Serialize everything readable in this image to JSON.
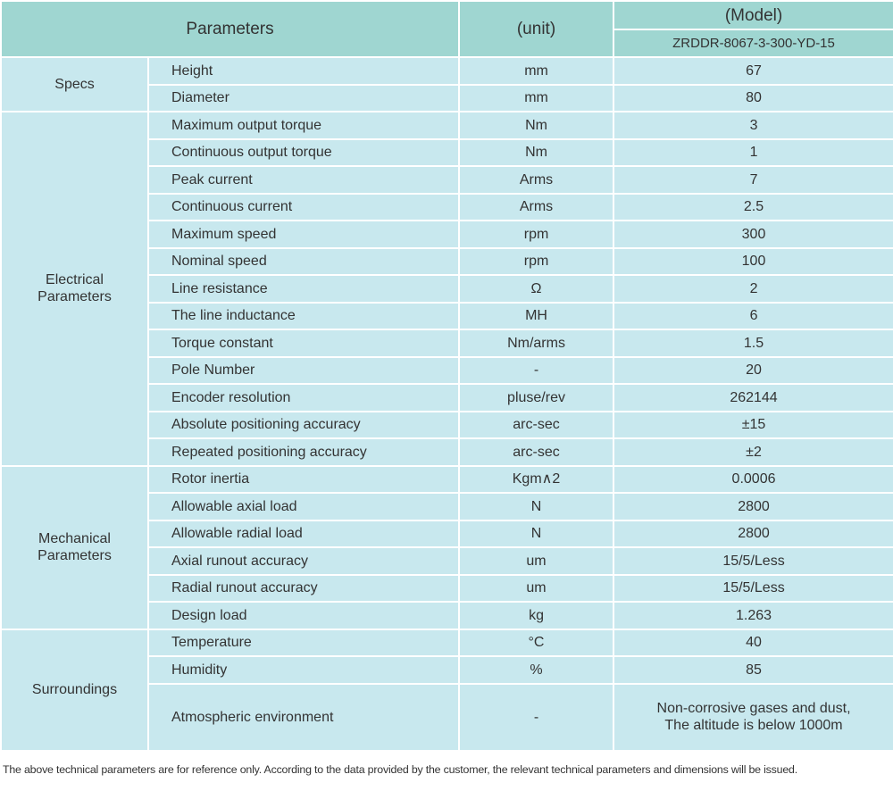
{
  "header": {
    "parameters": "Parameters",
    "unit": "(unit)",
    "model_label": "(Model)",
    "model": "ZRDDR-8067-3-300-YD-15"
  },
  "groups": [
    {
      "name": "Specs",
      "rows": [
        [
          "Height",
          "mm",
          "67"
        ],
        [
          "Diameter",
          "mm",
          "80"
        ]
      ]
    },
    {
      "name": "Electrical\nParameters",
      "rows": [
        [
          "Maximum output torque",
          "Nm",
          "3"
        ],
        [
          "Continuous output torque",
          "Nm",
          "1"
        ],
        [
          "Peak current",
          "Arms",
          "7"
        ],
        [
          "Continuous current",
          "Arms",
          "2.5"
        ],
        [
          "Maximum speed",
          "rpm",
          "300"
        ],
        [
          "Nominal speed",
          "rpm",
          "100"
        ],
        [
          "Line resistance",
          "Ω",
          "2"
        ],
        [
          "The line inductance",
          "MH",
          "6"
        ],
        [
          "Torque constant",
          "Nm/arms",
          "1.5"
        ],
        [
          "Pole Number",
          "-",
          "20"
        ],
        [
          "Encoder resolution",
          "pluse/rev",
          "262144"
        ],
        [
          "Absolute positioning accuracy",
          "arc-sec",
          "±15"
        ],
        [
          "Repeated positioning accuracy",
          "arc-sec",
          "±2"
        ]
      ]
    },
    {
      "name": "Mechanical\nParameters",
      "rows": [
        [
          "Rotor inertia",
          "Kgm∧2",
          "0.0006"
        ],
        [
          "Allowable axial load",
          "N",
          "2800"
        ],
        [
          "Allowable radial load",
          "N",
          "2800"
        ],
        [
          "Axial runout accuracy",
          "um",
          "15/5/Less"
        ],
        [
          "Radial runout accuracy",
          "um",
          "15/5/Less"
        ],
        [
          "Design load",
          "kg",
          "1.263"
        ]
      ]
    },
    {
      "name": "Surroundings",
      "rows": [
        [
          "Temperature",
          "°C",
          "40"
        ],
        [
          "Humidity",
          "%",
          "85"
        ],
        [
          "Atmospheric environment",
          "-",
          "Non-corrosive gases and dust,\nThe altitude is below 1000m"
        ]
      ]
    }
  ],
  "footnote": "The above technical parameters are for reference only. According to the data provided by the customer, the relevant technical parameters and dimensions will be issued."
}
